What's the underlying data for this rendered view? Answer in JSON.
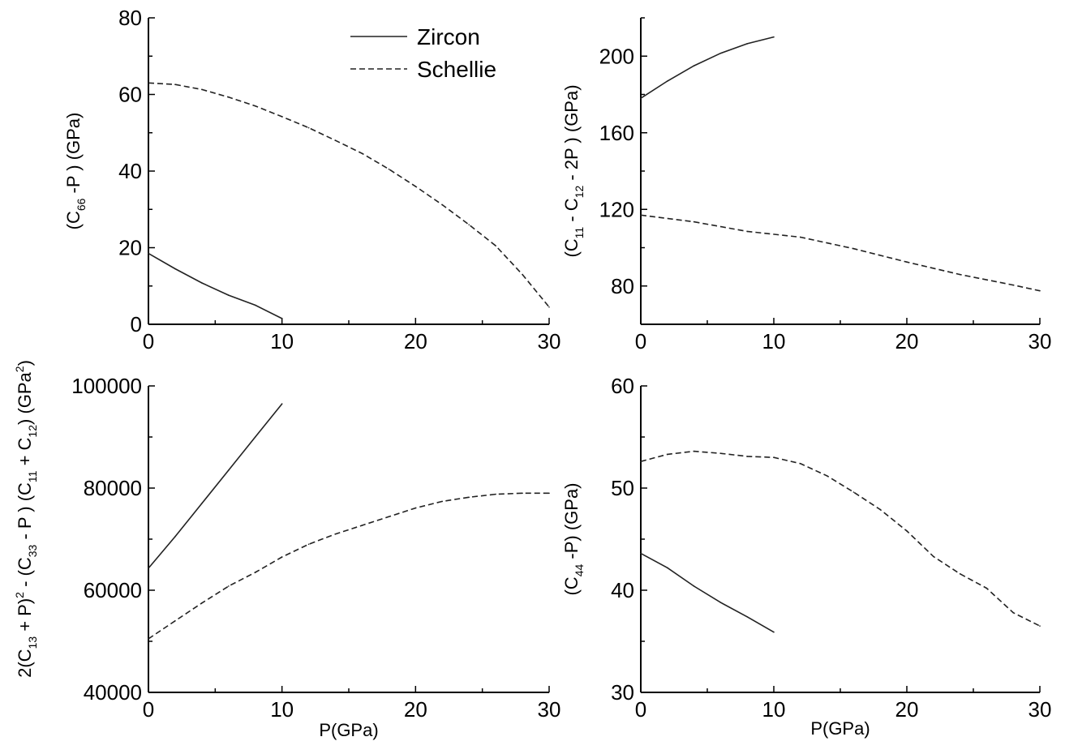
{
  "chart_data": [
    {
      "type": "line",
      "panel": "top-left",
      "xlim": [
        0,
        30
      ],
      "ylim": [
        0,
        80
      ],
      "xticks": [
        "0",
        "10",
        "20",
        "30"
      ],
      "yticks": [
        "0",
        "20",
        "40",
        "60",
        "80"
      ],
      "xlabel": "",
      "ylabel_parts": [
        "(C",
        "66",
        " -P ) (GPa)"
      ],
      "legend": {
        "placement": "top-right",
        "entries": [
          "Zircon",
          "Schellie"
        ]
      },
      "series": [
        {
          "name": "Zircon",
          "style": "solid",
          "x": [
            0,
            2,
            4,
            6,
            8,
            10
          ],
          "y": [
            18.5,
            14.5,
            10.8,
            7.6,
            5.0,
            1.5
          ]
        },
        {
          "name": "Schellie",
          "style": "dashed",
          "x": [
            0,
            2,
            4,
            6,
            8,
            10,
            12,
            14,
            16,
            18,
            20,
            22,
            24,
            26,
            28,
            30
          ],
          "y": [
            63,
            62.6,
            61.3,
            59.3,
            57,
            54.2,
            51.3,
            48,
            44.6,
            40.5,
            36,
            31.2,
            26,
            20.5,
            13,
            4.5
          ]
        }
      ]
    },
    {
      "type": "line",
      "panel": "top-right",
      "xlim": [
        0,
        30
      ],
      "ylim": [
        60,
        220
      ],
      "xticks": [
        "0",
        "10",
        "20",
        "30"
      ],
      "yticks": [
        "80",
        "120",
        "160",
        "200"
      ],
      "xlabel": "",
      "ylabel_parts": [
        "(C",
        "11",
        " - C",
        "12",
        " - 2P ) (GPa)"
      ],
      "series": [
        {
          "name": "Zircon",
          "style": "solid",
          "x": [
            0,
            2,
            4,
            6,
            8,
            10
          ],
          "y": [
            178,
            187,
            195,
            201.5,
            206.5,
            210
          ]
        },
        {
          "name": "Schellie",
          "style": "dashed",
          "x": [
            0,
            4,
            8,
            12,
            16,
            20,
            24,
            28,
            30
          ],
          "y": [
            117,
            113.5,
            108.5,
            105.5,
            99.5,
            92.5,
            86,
            80.5,
            77.5
          ]
        }
      ]
    },
    {
      "type": "line",
      "panel": "bottom-left",
      "xlim": [
        0,
        30
      ],
      "ylim": [
        40000,
        100000
      ],
      "xticks": [
        "0",
        "10",
        "20",
        "30"
      ],
      "yticks": [
        "40000",
        "60000",
        "80000",
        "100000"
      ],
      "xlabel": "P(GPa)",
      "ylabel_parts": [
        "2(C",
        "13",
        " + P)",
        "2",
        " - (C",
        "33",
        " - P ) (C",
        "11",
        " + C",
        "12",
        ") (GPa",
        "2",
        ")"
      ],
      "series": [
        {
          "name": "Zircon",
          "style": "solid",
          "x": [
            0,
            2,
            4,
            6,
            8,
            10
          ],
          "y": [
            64300,
            70500,
            77000,
            83500,
            90000,
            96500
          ]
        },
        {
          "name": "Schellie",
          "style": "dashed",
          "x": [
            0,
            2,
            4,
            6,
            8,
            10,
            12,
            14,
            16,
            18,
            20,
            22,
            24,
            26,
            28,
            30
          ],
          "y": [
            50500,
            54000,
            57500,
            60800,
            63500,
            66500,
            69000,
            71000,
            72700,
            74400,
            76100,
            77400,
            78200,
            78800,
            79000,
            79000
          ]
        }
      ]
    },
    {
      "type": "line",
      "panel": "bottom-right",
      "xlim": [
        0,
        30
      ],
      "ylim": [
        30,
        60
      ],
      "xticks": [
        "0",
        "10",
        "20",
        "30"
      ],
      "yticks": [
        "30",
        "40",
        "50",
        "60"
      ],
      "xlabel": "P(GPa)",
      "ylabel_parts": [
        "(C",
        "44",
        " -P) (GPa)"
      ],
      "series": [
        {
          "name": "Zircon",
          "style": "solid",
          "x": [
            0,
            2,
            4,
            6,
            8,
            10
          ],
          "y": [
            43.6,
            42.2,
            40.4,
            38.8,
            37.4,
            35.9
          ]
        },
        {
          "name": "Schellie",
          "style": "dashed",
          "x": [
            0,
            2,
            4,
            6,
            8,
            10,
            12,
            14,
            16,
            18,
            20,
            22,
            24,
            26,
            28,
            30
          ],
          "y": [
            52.6,
            53.3,
            53.6,
            53.4,
            53.1,
            53.0,
            52.4,
            51.2,
            49.6,
            47.9,
            45.8,
            43.3,
            41.6,
            40.2,
            37.8,
            36.5
          ]
        }
      ]
    }
  ]
}
